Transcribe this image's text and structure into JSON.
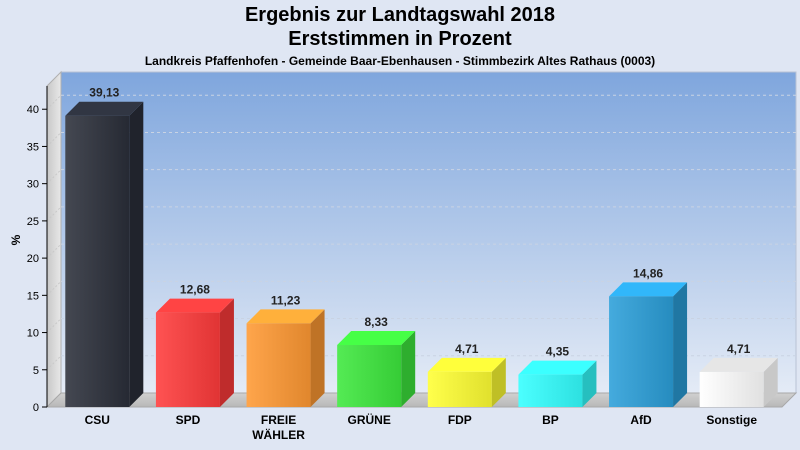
{
  "chart_data": {
    "type": "bar",
    "title": "Ergebnis zur Landtagswahl 2018",
    "subtitle": "Erststimmen in Prozent",
    "subsubtitle": "Landkreis Pfaffenhofen - Gemeinde Baar-Ebenhausen - Stimmbezirk Altes Rathaus (0003)",
    "ylabel": "%",
    "xlabel": "",
    "ylim": [
      0,
      45
    ],
    "yticks": [
      0,
      5,
      10,
      15,
      20,
      25,
      30,
      35,
      40
    ],
    "grid": true,
    "categories": [
      "CSU",
      "SPD",
      "FREIE WÄHLER",
      "GRÜNE",
      "FDP",
      "BP",
      "AfD",
      "Sonstige"
    ],
    "category_lines": [
      [
        "CSU"
      ],
      [
        "SPD"
      ],
      [
        "FREIE",
        "WÄHLER"
      ],
      [
        "GRÜNE"
      ],
      [
        "FDP"
      ],
      [
        "BP"
      ],
      [
        "AfD"
      ],
      [
        "Sonstige"
      ]
    ],
    "values": [
      39.13,
      12.68,
      11.23,
      8.33,
      4.71,
      4.35,
      14.86,
      4.71
    ],
    "value_labels": [
      "39,13",
      "12,68",
      "11,23",
      "8,33",
      "4,71",
      "4,35",
      "14,86",
      "4,71"
    ],
    "colors": [
      "#2b2f3a",
      "#ff3b3b",
      "#ff9933",
      "#3de83d",
      "#ffff33",
      "#33ffff",
      "#2b9fd9",
      "#ffffff"
    ]
  }
}
